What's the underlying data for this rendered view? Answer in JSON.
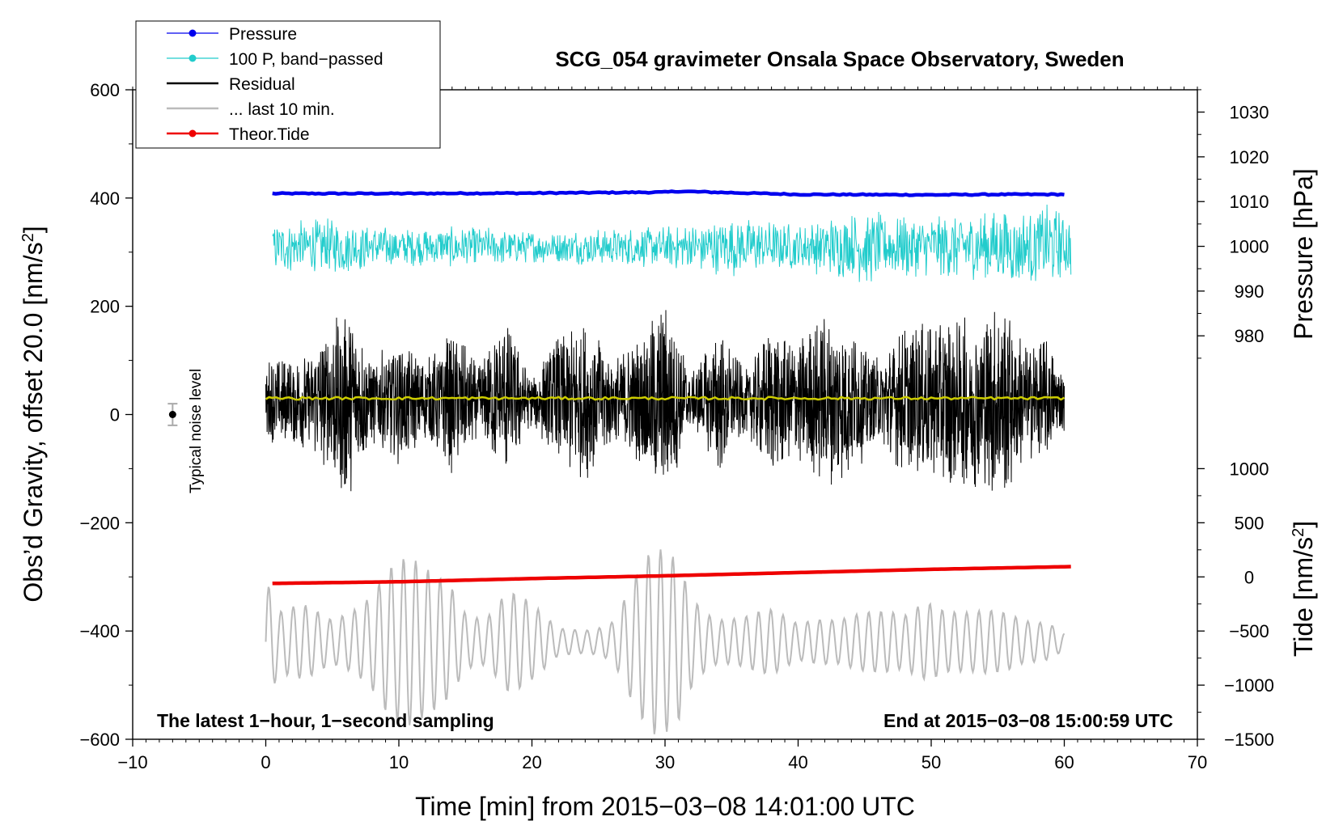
{
  "chart_data": {
    "type": "line",
    "title": "SCG_054 gravimeter Onsala Space Observatory, Sweden",
    "xlabel": "Time [min] from 2015−03−08 14:01:00 UTC",
    "ylabel": "Obs’d Gravity, offset 20.0 [nm/s²]",
    "ylabel_main": "Obs’d Gravity, offset 20.0 [nm/s",
    "ylabel_sup": "2",
    "ylabel_close": "]",
    "xlim": [
      -10,
      70
    ],
    "ylim": [
      -600,
      600
    ],
    "x_ticks": [
      -10,
      0,
      10,
      20,
      30,
      40,
      50,
      60,
      70
    ],
    "x_tick_labels": [
      "−10",
      "0",
      "10",
      "20",
      "30",
      "40",
      "50",
      "60",
      "70"
    ],
    "y_ticks": [
      -600,
      -400,
      -200,
      0,
      200,
      400,
      600
    ],
    "y_tick_labels": [
      "−600",
      "−400",
      "−200",
      "0",
      "200",
      "400",
      "600"
    ],
    "pressure_axis": {
      "label": "Pressure [hPa]",
      "ticks": [
        980,
        990,
        1000,
        1010,
        1020,
        1030
      ],
      "tick_labels": [
        "980",
        "990",
        "1000",
        "1010",
        "1020",
        "1030"
      ],
      "mapping": {
        "p1": 980,
        "g1": 145.4,
        "p2": 1030,
        "g2": 558.8
      }
    },
    "tide_axis": {
      "label_main": "Tide [nm/s",
      "label_sup": "2",
      "label_close": "]",
      "ticks": [
        -1500,
        -1000,
        -500,
        0,
        500,
        1000
      ],
      "tick_labels": [
        "−1500",
        "−1000",
        "−500",
        "0",
        "500",
        "1000"
      ],
      "mapping": {
        "t1": -1500,
        "g1": -600,
        "t2": 1000,
        "g2": -100
      }
    },
    "legend": {
      "position": "top-left",
      "entries": [
        {
          "label": "Pressure",
          "color": "#0000ee",
          "marker": true
        },
        {
          "label": "100 P, band−passed",
          "color": "#22cccc",
          "marker": true
        },
        {
          "label": "Residual",
          "color": "#000000",
          "marker": false
        },
        {
          "label": "... last 10 min.",
          "color": "#bbbbbb",
          "marker": false
        },
        {
          "label": "Theor.Tide",
          "color": "#ee0000",
          "marker": true
        }
      ]
    },
    "annotations": {
      "left": "The latest 1−hour, 1−second sampling",
      "right": "End at 2015−03−08 15:00:59 UTC",
      "noise": "Typical noise level"
    },
    "noise_bar": {
      "x": -7,
      "y": 0,
      "err": 20
    },
    "series": [
      {
        "name": "Pressure",
        "unit": "hPa",
        "color": "#0000ee",
        "x": [
          0.5,
          10,
          20,
          30,
          31,
          40,
          50,
          55,
          60
        ],
        "values": [
          1011.8,
          1011.8,
          1011.9,
          1012.1,
          1012.3,
          1011.6,
          1011.5,
          1011.6,
          1011.6
        ]
      },
      {
        "name": "100 P, band−passed",
        "unit": "nm/s²",
        "color": "#22cccc",
        "x_range": [
          0.5,
          60.5
        ],
        "center": 310,
        "envelope_x": [
          0.5,
          5,
          10,
          15,
          20,
          25,
          30,
          35,
          40,
          45,
          50,
          55,
          59,
          60.5
        ],
        "envelope": [
          45,
          55,
          35,
          40,
          30,
          35,
          40,
          55,
          45,
          70,
          55,
          70,
          80,
          60
        ]
      },
      {
        "name": "Residual",
        "unit": "nm/s²",
        "color": "#000000",
        "x_range": [
          0,
          60
        ],
        "center": 25,
        "envelope_x": [
          0,
          2,
          4,
          6,
          8,
          10,
          12,
          14,
          16,
          18,
          20,
          22,
          24,
          26,
          28,
          30,
          32,
          34,
          36,
          38,
          40,
          42,
          44,
          46,
          48,
          50,
          52,
          54,
          55.5,
          57,
          58.5,
          60
        ],
        "envelope": [
          85,
          80,
          110,
          190,
          80,
          120,
          75,
          140,
          70,
          160,
          45,
          125,
          150,
          80,
          120,
          190,
          50,
          145,
          60,
          140,
          120,
          160,
          140,
          80,
          140,
          150,
          165,
          170,
          195,
          110,
          120,
          55
        ]
      },
      {
        "name": "... last 10 min.",
        "unit": "nm/s²",
        "color": "#bbbbbb",
        "x_range": [
          0,
          60
        ],
        "center": -420,
        "envelope_x": [
          0,
          1,
          3,
          5,
          7,
          9,
          10.5,
          12,
          14,
          15,
          16.5,
          18,
          20,
          22,
          24,
          26,
          27.5,
          29,
          31,
          32,
          34,
          36,
          38,
          40,
          42,
          44,
          46,
          48,
          50,
          52,
          53,
          55,
          57,
          59,
          60
        ],
        "envelope": [
          150,
          60,
          70,
          60,
          130,
          170,
          160,
          140,
          150,
          100,
          80,
          120,
          70,
          30,
          40,
          60,
          130,
          170,
          180,
          130,
          80,
          60,
          60,
          40,
          80,
          80,
          60,
          50,
          110,
          110,
          90,
          60,
          40,
          50,
          30
        ]
      },
      {
        "name": "Theor.Tide",
        "unit": "nm/s²",
        "color": "#ee0000",
        "x": [
          0.5,
          10,
          20,
          30,
          40,
          50,
          60.5
        ],
        "values": [
          -60,
          -45,
          -15,
          10,
          40,
          70,
          95
        ]
      },
      {
        "name": "Mean residual",
        "unit": "nm/s²",
        "color": "#cccc00",
        "x": [
          0,
          60
        ],
        "values": [
          30,
          30
        ]
      }
    ]
  }
}
